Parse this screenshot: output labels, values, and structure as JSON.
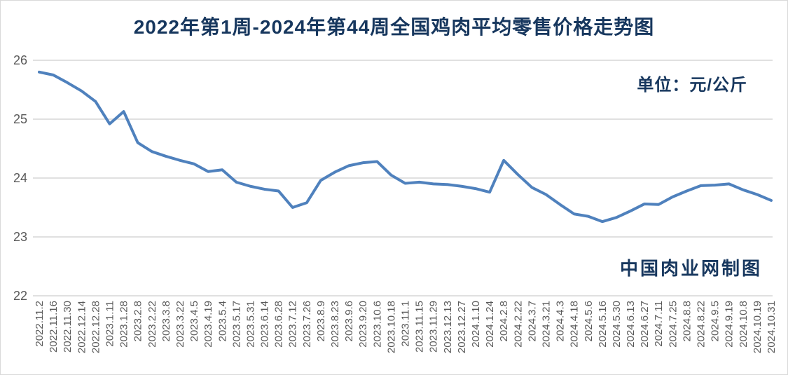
{
  "title": "2022年第1周-2024年第44周全国鸡肉平均零售价格走势图",
  "unit_label": "单位：元/公斤",
  "watermark": "中国肉业网制图",
  "colors": {
    "title_text": "#17375E",
    "line": "#4F81BD",
    "grid": "#D6D6D6",
    "axis_text": "#595959",
    "background": "#FFFFFF"
  },
  "chart_data": {
    "type": "line",
    "title": "2022年第1周-2024年第44周全国鸡肉平均零售价格走势图",
    "xlabel": "",
    "ylabel": "元/公斤",
    "ylim": [
      22,
      26
    ],
    "yticks": [
      22,
      23,
      24,
      25,
      26
    ],
    "grid": true,
    "legend_position": "none",
    "x": [
      "2022.11.2",
      "2022.11.16",
      "2022.11.30",
      "2022.12.14",
      "2022.12.28",
      "2023.1.11",
      "2023.1.28",
      "2023.2.8",
      "2023.2.22",
      "2023.3.8",
      "2023.3.22",
      "2023.4.5",
      "2023.4.19",
      "2023.5.4",
      "2023.5.17",
      "2023.5.31",
      "2023.6.14",
      "2023.6.28",
      "2023.7.12",
      "2023.7.26",
      "2023.8.9",
      "2023.8.23",
      "2023.9.6",
      "2023.9.20",
      "2023.10.6",
      "2023.10.18",
      "2023.11.1",
      "2023.11.15",
      "2023.11.29",
      "2023.12.13",
      "2023.12.27",
      "2024.1.10",
      "2024.1.24",
      "2024.2.8",
      "2024.2.22",
      "2024.3.7",
      "2024.3.21",
      "2024.4.3",
      "2024.4.18",
      "2024.5.6",
      "2024.5.16",
      "2024.5.30",
      "2024.6.13",
      "2024.6.27",
      "2024.7.11",
      "2024.7.25",
      "2024.8.8",
      "2024.8.22",
      "2024.9.5",
      "2024.9.19",
      "2024.10.8",
      "2024.10.19",
      "2024.10.31"
    ],
    "series": [
      {
        "name": "全国鸡肉平均零售价格",
        "values": [
          25.8,
          25.75,
          25.62,
          25.48,
          25.3,
          24.92,
          25.13,
          24.6,
          24.45,
          24.37,
          24.3,
          24.24,
          24.11,
          24.14,
          23.93,
          23.86,
          23.81,
          23.78,
          23.5,
          23.58,
          23.96,
          24.1,
          24.21,
          24.26,
          24.28,
          24.05,
          23.91,
          23.93,
          23.9,
          23.89,
          23.86,
          23.82,
          23.76,
          24.3,
          24.06,
          23.84,
          23.72,
          23.55,
          23.39,
          23.35,
          23.26,
          23.33,
          23.44,
          23.56,
          23.55,
          23.68,
          23.78,
          23.87,
          23.88,
          23.9,
          23.8,
          23.72,
          23.62
        ]
      }
    ]
  }
}
